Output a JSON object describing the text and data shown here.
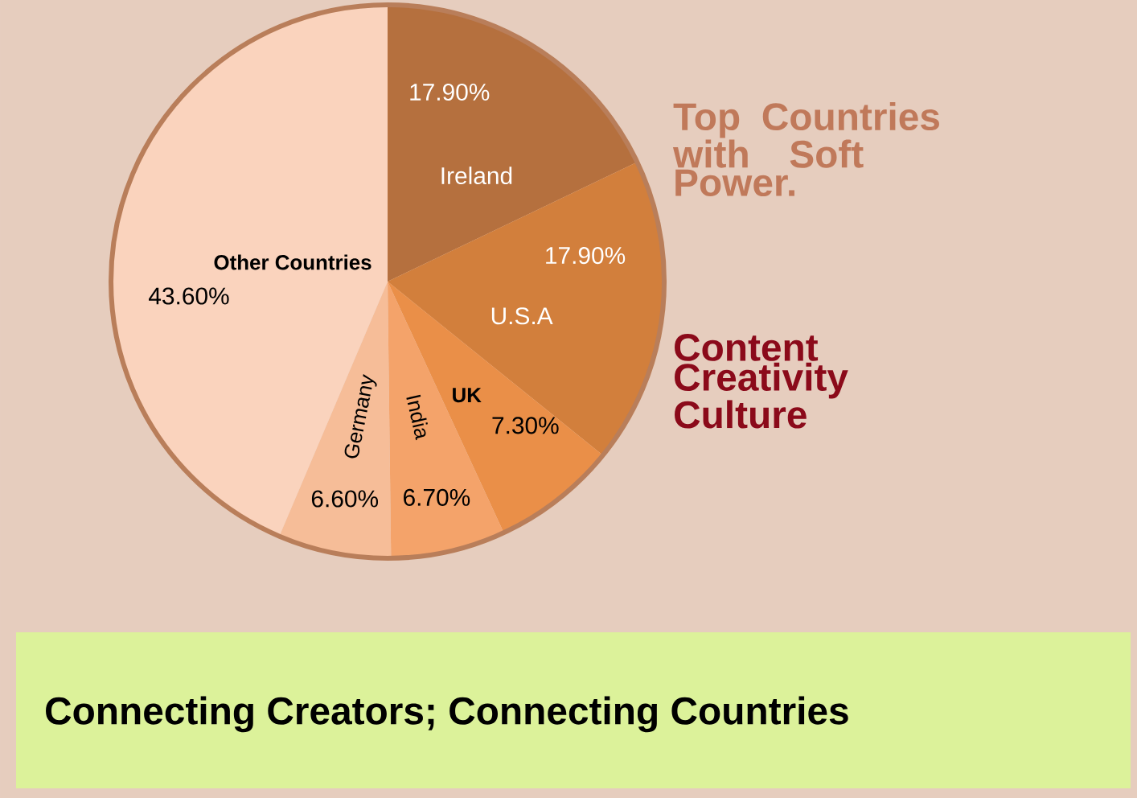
{
  "chart_data": {
    "type": "pie",
    "title": "Top Countries with Soft Power.",
    "subtitle": "Content Creativity Culture",
    "categories": [
      "Ireland",
      "U.S.A",
      "UK",
      "India",
      "Germany",
      "Other Countries"
    ],
    "values": [
      17.9,
      17.9,
      7.3,
      6.7,
      6.6,
      43.6
    ],
    "value_labels": [
      "17.90%",
      "17.90%",
      "7.30%",
      "6.70%",
      "6.60%",
      "43.60%"
    ],
    "colors": [
      "#b5703e",
      "#d27f3c",
      "#ea8f48",
      "#f4a36a",
      "#f6bd98",
      "#fad3bd"
    ],
    "annotations": [
      "Connecting Creators; Connecting Countries"
    ]
  }
}
